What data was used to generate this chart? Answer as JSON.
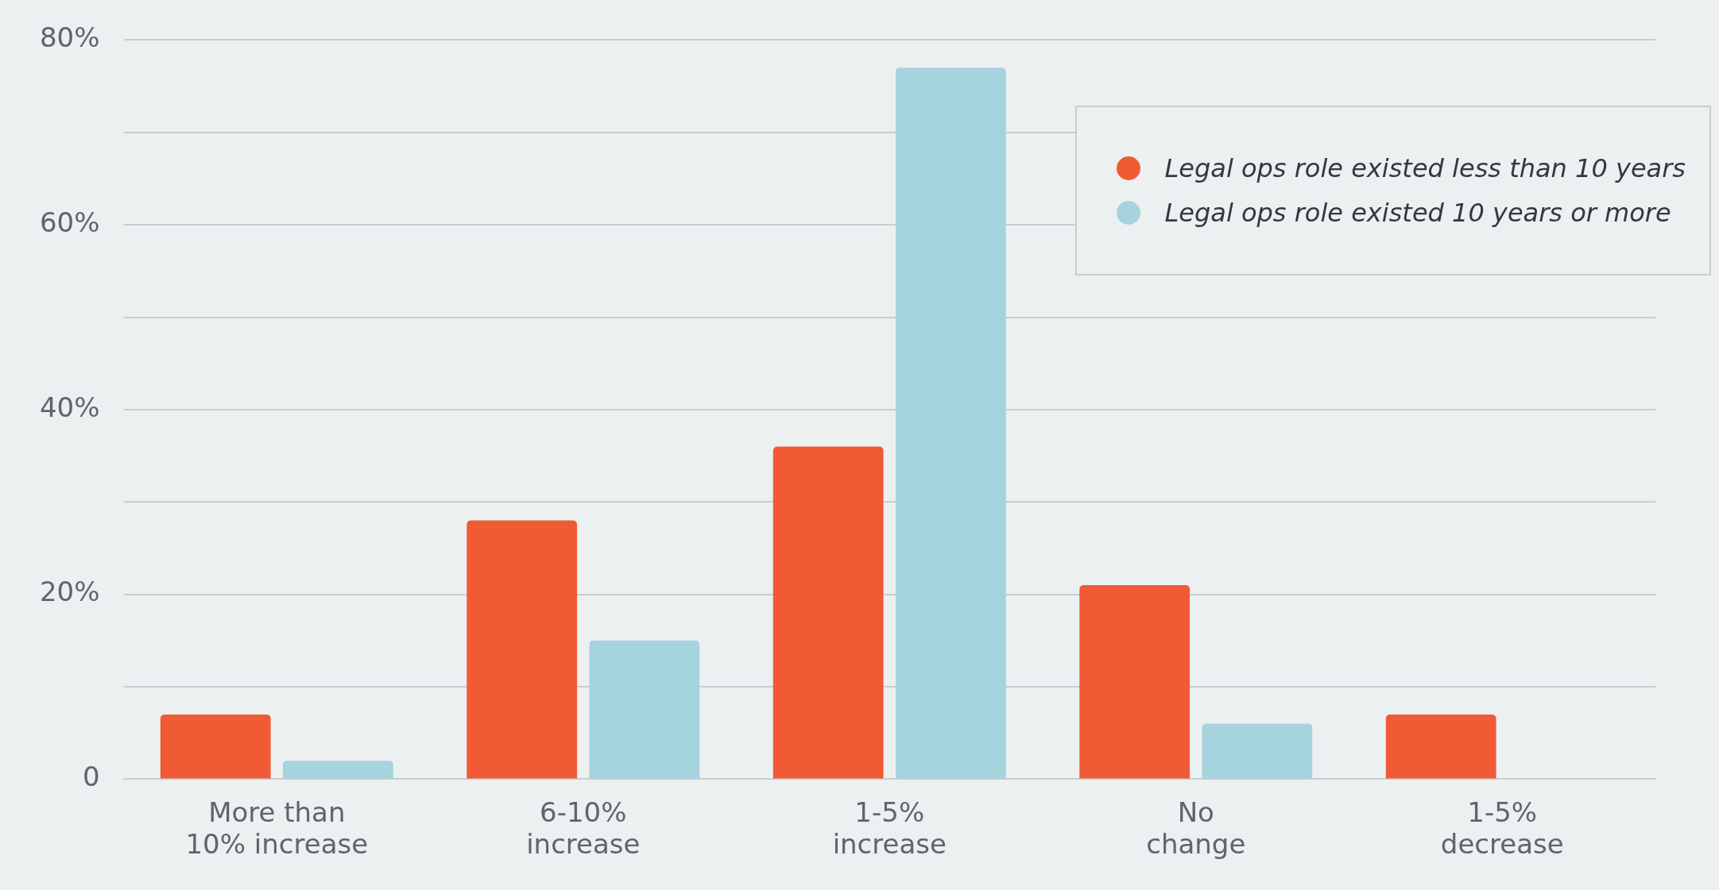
{
  "chart_data": {
    "type": "bar",
    "categories": [
      "More than\n10% increase",
      "6-10%\nincrease",
      "1-5%\nincrease",
      "No\nchange",
      "1-5%\ndecrease"
    ],
    "series": [
      {
        "name": "Legal ops role existed less than 10 years",
        "color": "#f05a35",
        "values": [
          7,
          28,
          36,
          21,
          7
        ]
      },
      {
        "name": "Legal ops role existed 10 years or more",
        "color": "#a5d3de",
        "values": [
          2,
          15,
          77,
          6,
          0
        ]
      }
    ],
    "ylim": [
      0,
      80
    ],
    "yticks": [
      0,
      {
        "value": 10,
        "label": null
      },
      {
        "value": 20,
        "label": "20%"
      },
      {
        "value": 30,
        "label": null
      },
      {
        "value": 40,
        "label": "40%"
      },
      {
        "value": 50,
        "label": null
      },
      {
        "value": 60,
        "label": "60%"
      },
      {
        "value": 70,
        "label": null
      },
      {
        "value": 80,
        "label": "80%"
      }
    ],
    "grid": "y",
    "legend": "top right"
  }
}
